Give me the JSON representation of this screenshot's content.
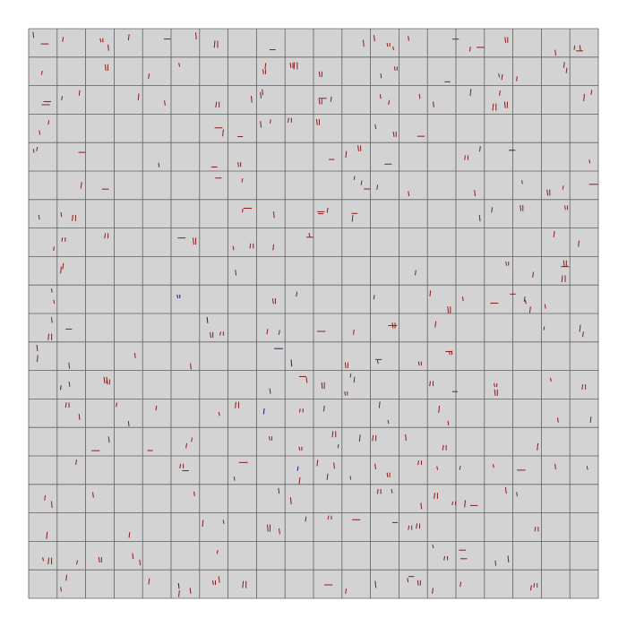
{
  "board": {
    "rows": 20,
    "cols": 20,
    "background": "#d3d3d3",
    "grid_line_color": "#606060",
    "page_background": "#ffffff"
  },
  "marks": {
    "red_color": "#8b1a1a",
    "blue_color": "#1a1a8b",
    "seed": 20240517,
    "red_density": 0.55,
    "blue_density": 0.04
  }
}
